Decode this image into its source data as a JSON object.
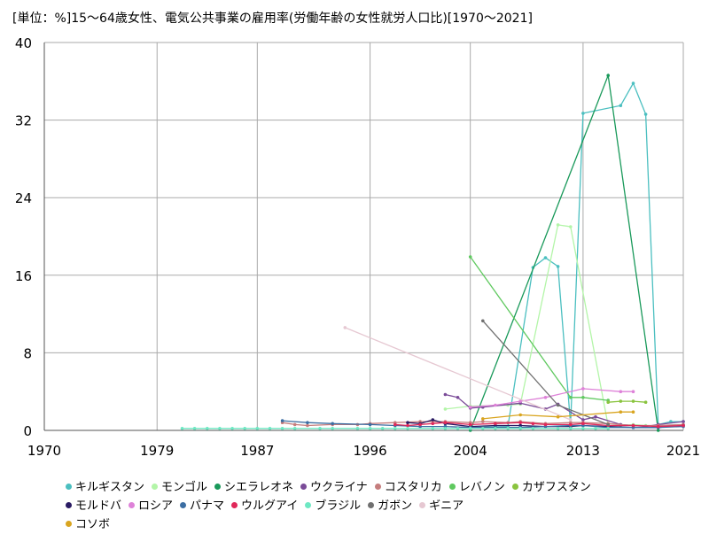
{
  "title": "[単位：%]15〜64歳女性、電気公共事業の雇用率(労働年齢の女性就労人口比)[1970〜2021]",
  "chart_data": {
    "type": "line",
    "title": "15〜64歳女性、電気公共事業の雇用率(労働年齢の女性就労人口比)[1970〜2021]",
    "unit_label": "[単位：%]",
    "xlim": [
      1970,
      2021
    ],
    "ylim": [
      0,
      40
    ],
    "x_ticks": [
      "1970",
      "1979",
      "1987",
      "1996",
      "2004",
      "2013",
      "2021"
    ],
    "y_ticks": [
      "0",
      "8",
      "16",
      "24",
      "32",
      "40"
    ],
    "grid": true,
    "legend_position": "bottom",
    "series": [
      {
        "name": "キルギスタン",
        "color": "#4bbfc0",
        "points": [
          [
            2004,
            0.3
          ],
          [
            2007,
            0.4
          ],
          [
            2009,
            16.8
          ],
          [
            2010,
            17.8
          ],
          [
            2011,
            16.9
          ],
          [
            2012,
            0.6
          ],
          [
            2013,
            32.7
          ],
          [
            2016,
            33.5
          ],
          [
            2017,
            35.8
          ],
          [
            2018,
            32.6
          ],
          [
            2019,
            0.6
          ],
          [
            2020,
            0.9
          ],
          [
            2021,
            0.9
          ]
        ]
      },
      {
        "name": "モンゴル",
        "color": "#b3f5a8",
        "points": [
          [
            2002,
            2.2
          ],
          [
            2004,
            2.5
          ],
          [
            2007,
            2.6
          ],
          [
            2008,
            2.7
          ],
          [
            2011,
            21.2
          ],
          [
            2012,
            21.0
          ],
          [
            2015,
            0.5
          ],
          [
            2016,
            0.5
          ],
          [
            2017,
            0.6
          ],
          [
            2018,
            0.5
          ]
        ]
      },
      {
        "name": "シエラレオネ",
        "color": "#19995a",
        "points": [
          [
            2004,
            0.0
          ],
          [
            2015,
            36.6
          ],
          [
            2019,
            0.0
          ]
        ]
      },
      {
        "name": "ウクライナ",
        "color": "#7a4b98",
        "points": [
          [
            2002,
            3.7
          ],
          [
            2003,
            3.4
          ],
          [
            2004,
            2.3
          ],
          [
            2005,
            2.4
          ],
          [
            2008,
            2.8
          ],
          [
            2010,
            2.2
          ],
          [
            2011,
            2.7
          ],
          [
            2013,
            1.1
          ],
          [
            2014,
            1.4
          ],
          [
            2016,
            0.6
          ],
          [
            2017,
            0.5
          ],
          [
            2018,
            0.4
          ],
          [
            2019,
            0.6
          ],
          [
            2021,
            0.9
          ]
        ]
      },
      {
        "name": "コスタリカ",
        "color": "#c57d7d",
        "points": [
          [
            1989,
            0.8
          ],
          [
            1990,
            0.6
          ],
          [
            1991,
            0.5
          ],
          [
            1993,
            0.6
          ],
          [
            1995,
            0.6
          ],
          [
            1996,
            0.7
          ],
          [
            1998,
            0.8
          ],
          [
            2000,
            0.9
          ],
          [
            2002,
            0.9
          ],
          [
            2004,
            0.8
          ],
          [
            2005,
            0.9
          ],
          [
            2007,
            0.8
          ],
          [
            2008,
            0.9
          ],
          [
            2010,
            0.7
          ],
          [
            2012,
            0.8
          ],
          [
            2013,
            0.8
          ],
          [
            2015,
            0.7
          ],
          [
            2017,
            0.5
          ],
          [
            2019,
            0.5
          ],
          [
            2021,
            0.6
          ]
        ]
      },
      {
        "name": "レバノン",
        "color": "#5fc95f",
        "points": [
          [
            2004,
            17.9
          ],
          [
            2012,
            3.4
          ],
          [
            2013,
            3.4
          ],
          [
            2015,
            3.1
          ]
        ]
      },
      {
        "name": "カザフスタン",
        "color": "#8ac43f",
        "points": [
          [
            2015,
            2.9
          ],
          [
            2016,
            3.0
          ],
          [
            2017,
            3.0
          ],
          [
            2018,
            2.9
          ]
        ]
      },
      {
        "name": "モルドバ",
        "color": "#2a1b63",
        "points": [
          [
            1999,
            0.8
          ],
          [
            2000,
            0.7
          ],
          [
            2001,
            1.1
          ],
          [
            2002,
            0.7
          ],
          [
            2004,
            0.4
          ],
          [
            2006,
            0.5
          ],
          [
            2008,
            0.5
          ],
          [
            2010,
            0.4
          ],
          [
            2012,
            0.4
          ],
          [
            2013,
            0.5
          ],
          [
            2015,
            0.4
          ],
          [
            2017,
            0.3
          ],
          [
            2019,
            0.3
          ],
          [
            2021,
            0.5
          ]
        ]
      },
      {
        "name": "ロシア",
        "color": "#de82d8",
        "points": [
          [
            2004,
            2.4
          ],
          [
            2006,
            2.6
          ],
          [
            2008,
            3.0
          ],
          [
            2010,
            3.4
          ],
          [
            2013,
            4.3
          ],
          [
            2016,
            4.0
          ],
          [
            2017,
            4.0
          ]
        ]
      },
      {
        "name": "パナマ",
        "color": "#3c6ea3",
        "points": [
          [
            1989,
            1.0
          ],
          [
            1991,
            0.8
          ],
          [
            1993,
            0.7
          ],
          [
            1996,
            0.6
          ],
          [
            1998,
            0.5
          ],
          [
            2000,
            0.4
          ],
          [
            2002,
            0.4
          ],
          [
            2004,
            0.3
          ],
          [
            2006,
            0.3
          ],
          [
            2008,
            0.3
          ],
          [
            2010,
            0.4
          ],
          [
            2012,
            0.5
          ],
          [
            2013,
            0.5
          ],
          [
            2015,
            0.3
          ],
          [
            2017,
            0.3
          ],
          [
            2019,
            0.3
          ],
          [
            2021,
            0.4
          ]
        ]
      },
      {
        "name": "ウルグアイ",
        "color": "#e0285a",
        "points": [
          [
            1998,
            0.6
          ],
          [
            1999,
            0.5
          ],
          [
            2000,
            0.6
          ],
          [
            2001,
            0.7
          ],
          [
            2002,
            0.8
          ],
          [
            2004,
            0.6
          ],
          [
            2006,
            0.7
          ],
          [
            2008,
            0.8
          ],
          [
            2009,
            0.7
          ],
          [
            2010,
            0.6
          ],
          [
            2012,
            0.6
          ],
          [
            2013,
            0.7
          ],
          [
            2015,
            0.5
          ],
          [
            2017,
            0.5
          ],
          [
            2019,
            0.4
          ],
          [
            2021,
            0.5
          ]
        ]
      },
      {
        "name": "ブラジル",
        "color": "#6ee8c3",
        "points": [
          [
            1981,
            0.2
          ],
          [
            1982,
            0.2
          ],
          [
            1983,
            0.2
          ],
          [
            1984,
            0.2
          ],
          [
            1985,
            0.2
          ],
          [
            1986,
            0.2
          ],
          [
            1987,
            0.2
          ],
          [
            1988,
            0.2
          ],
          [
            1989,
            0.2
          ],
          [
            1990,
            0.2
          ],
          [
            1992,
            0.2
          ],
          [
            1993,
            0.2
          ],
          [
            1995,
            0.2
          ],
          [
            1996,
            0.2
          ],
          [
            1997,
            0.2
          ],
          [
            1998,
            0.2
          ],
          [
            1999,
            0.2
          ],
          [
            2001,
            0.2
          ],
          [
            2002,
            0.2
          ],
          [
            2003,
            0.2
          ],
          [
            2004,
            0.2
          ],
          [
            2005,
            0.2
          ],
          [
            2006,
            0.2
          ],
          [
            2007,
            0.2
          ],
          [
            2008,
            0.2
          ],
          [
            2009,
            0.2
          ],
          [
            2011,
            0.2
          ],
          [
            2012,
            0.2
          ],
          [
            2013,
            0.2
          ],
          [
            2014,
            0.2
          ],
          [
            2015,
            0.2
          ]
        ]
      },
      {
        "name": "ガボン",
        "color": "#707070",
        "points": [
          [
            2005,
            11.3
          ],
          [
            2011,
            2.6
          ],
          [
            2015,
            0.6
          ]
        ]
      },
      {
        "name": "ギニア",
        "color": "#e6c8d2",
        "points": [
          [
            1994,
            10.6
          ],
          [
            2012,
            1.1
          ]
        ]
      },
      {
        "name": "コソボ",
        "color": "#d9a520",
        "points": [
          [
            2005,
            1.2
          ],
          [
            2008,
            1.6
          ],
          [
            2011,
            1.4
          ],
          [
            2016,
            1.9
          ],
          [
            2017,
            1.9
          ]
        ]
      }
    ]
  }
}
